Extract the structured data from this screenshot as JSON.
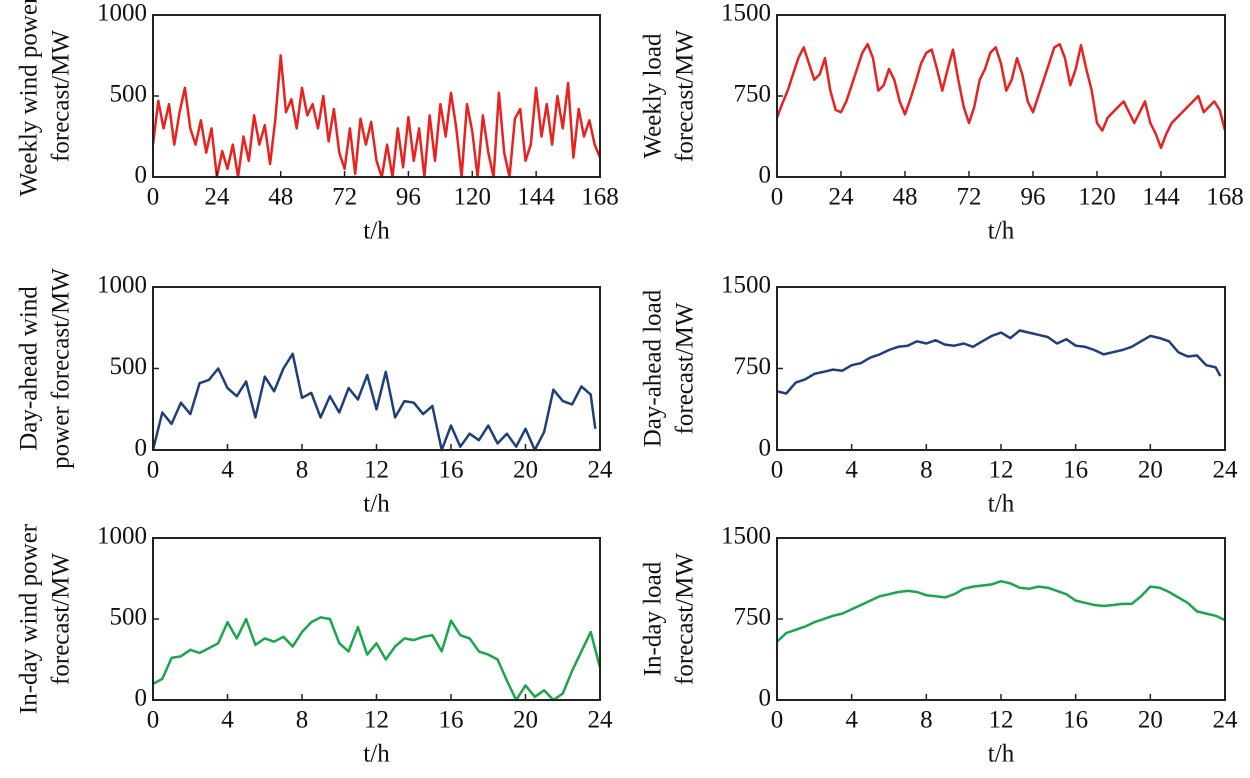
{
  "chart_data": [
    {
      "type": "line",
      "ylabel": [
        "Weekly wind power",
        "forecast/MW"
      ],
      "xlabel": "t/h",
      "xlim": [
        0,
        168
      ],
      "xticks": [
        0,
        24,
        48,
        72,
        96,
        120,
        144,
        168
      ],
      "ylim": [
        0,
        1000
      ],
      "yticks": [
        0,
        500,
        1000
      ],
      "series": [
        {
          "color": "#e8231f",
          "x": [
            0,
            2,
            4,
            6,
            8,
            10,
            12,
            14,
            16,
            18,
            20,
            22,
            24,
            26,
            28,
            30,
            32,
            34,
            36,
            38,
            40,
            42,
            44,
            46,
            48,
            50,
            52,
            54,
            56,
            58,
            60,
            62,
            64,
            66,
            68,
            70,
            72,
            74,
            76,
            78,
            80,
            82,
            84,
            86,
            88,
            90,
            92,
            94,
            96,
            98,
            100,
            102,
            104,
            106,
            108,
            110,
            112,
            114,
            116,
            118,
            120,
            122,
            124,
            126,
            128,
            130,
            132,
            134,
            136,
            138,
            140,
            142,
            144,
            146,
            148,
            150,
            152,
            154,
            156,
            158,
            160,
            162,
            164,
            166,
            168
          ],
          "values": [
            200,
            470,
            300,
            450,
            200,
            400,
            550,
            300,
            200,
            350,
            150,
            300,
            0,
            160,
            50,
            200,
            0,
            250,
            100,
            380,
            200,
            320,
            80,
            360,
            750,
            400,
            480,
            300,
            550,
            380,
            450,
            300,
            500,
            220,
            420,
            150,
            50,
            300,
            20,
            360,
            200,
            340,
            100,
            0,
            200,
            0,
            300,
            60,
            370,
            100,
            300,
            0,
            380,
            100,
            450,
            250,
            520,
            300,
            0,
            450,
            280,
            0,
            380,
            150,
            0,
            520,
            150,
            0,
            360,
            420,
            100,
            200,
            550,
            250,
            450,
            200,
            500,
            300,
            580,
            120,
            420,
            250,
            350,
            200,
            120
          ]
        }
      ]
    },
    {
      "type": "line",
      "ylabel": [
        "Weekly load",
        "forecast/MW"
      ],
      "xlabel": "t/h",
      "xlim": [
        0,
        168
      ],
      "xticks": [
        0,
        24,
        48,
        72,
        96,
        120,
        144,
        168
      ],
      "ylim": [
        0,
        1500
      ],
      "yticks": [
        0,
        750,
        1500
      ],
      "series": [
        {
          "color": "#e8231f",
          "x": [
            0,
            2,
            4,
            6,
            8,
            10,
            12,
            14,
            16,
            18,
            20,
            22,
            24,
            26,
            28,
            30,
            32,
            34,
            36,
            38,
            40,
            42,
            44,
            46,
            48,
            50,
            52,
            54,
            56,
            58,
            60,
            62,
            64,
            66,
            68,
            70,
            72,
            74,
            76,
            78,
            80,
            82,
            84,
            86,
            88,
            90,
            92,
            94,
            96,
            98,
            100,
            102,
            104,
            106,
            108,
            110,
            112,
            114,
            116,
            118,
            120,
            122,
            124,
            126,
            128,
            130,
            132,
            134,
            136,
            138,
            140,
            142,
            144,
            146,
            148,
            150,
            152,
            154,
            156,
            158,
            160,
            162,
            164,
            166,
            168
          ],
          "values": [
            550,
            680,
            800,
            950,
            1100,
            1200,
            1050,
            900,
            950,
            1100,
            800,
            620,
            600,
            700,
            850,
            1000,
            1150,
            1230,
            1100,
            800,
            850,
            1000,
            900,
            700,
            580,
            720,
            880,
            1050,
            1150,
            1180,
            1000,
            800,
            1000,
            1180,
            900,
            650,
            500,
            650,
            900,
            1000,
            1150,
            1200,
            1050,
            800,
            900,
            1100,
            950,
            700,
            600,
            750,
            900,
            1050,
            1200,
            1230,
            1100,
            850,
            1000,
            1220,
            1000,
            800,
            500,
            430,
            550,
            600,
            650,
            700,
            600,
            500,
            600,
            700,
            500,
            400,
            270,
            400,
            500,
            550,
            600,
            650,
            700,
            750,
            600,
            650,
            700,
            620,
            430
          ]
        }
      ]
    },
    {
      "type": "line",
      "ylabel": [
        "Day-ahead wind",
        "power forecast/MW"
      ],
      "xlabel": "t/h",
      "xlim": [
        0,
        24
      ],
      "xticks": [
        0,
        4,
        8,
        12,
        16,
        20,
        24
      ],
      "ylim": [
        0,
        1000
      ],
      "yticks": [
        0,
        500,
        1000
      ],
      "series": [
        {
          "color": "#1f3f7a",
          "x": [
            0,
            0.5,
            1,
            1.5,
            2,
            2.5,
            3,
            3.5,
            4,
            4.5,
            5,
            5.5,
            6,
            6.5,
            7,
            7.5,
            8,
            8.5,
            9,
            9.5,
            10,
            10.5,
            11,
            11.5,
            12,
            12.5,
            13,
            13.5,
            14,
            14.5,
            15,
            15.5,
            16,
            16.5,
            17,
            17.5,
            18,
            18.5,
            19,
            19.5,
            20,
            20.5,
            21,
            21.5,
            22,
            22.5,
            23,
            23.5,
            23.75
          ],
          "values": [
            0,
            230,
            160,
            290,
            220,
            410,
            430,
            500,
            380,
            330,
            420,
            200,
            450,
            360,
            500,
            590,
            320,
            350,
            200,
            330,
            230,
            380,
            310,
            460,
            250,
            480,
            200,
            300,
            290,
            220,
            270,
            0,
            150,
            20,
            100,
            60,
            150,
            40,
            100,
            20,
            130,
            0,
            110,
            370,
            300,
            280,
            390,
            340,
            130
          ]
        }
      ]
    },
    {
      "type": "line",
      "ylabel": [
        "Day-ahead load",
        "forecast/MW"
      ],
      "xlabel": "t/h",
      "xlim": [
        0,
        24
      ],
      "xticks": [
        0,
        4,
        8,
        12,
        16,
        20,
        24
      ],
      "ylim": [
        0,
        1500
      ],
      "yticks": [
        0,
        750,
        1500
      ],
      "series": [
        {
          "color": "#1f3f7a",
          "x": [
            0,
            0.5,
            1,
            1.5,
            2,
            2.5,
            3,
            3.5,
            4,
            4.5,
            5,
            5.5,
            6,
            6.5,
            7,
            7.5,
            8,
            8.5,
            9,
            9.5,
            10,
            10.5,
            11,
            11.5,
            12,
            12.5,
            13,
            13.5,
            14,
            14.5,
            15,
            15.5,
            16,
            16.5,
            17,
            17.5,
            18,
            18.5,
            19,
            19.5,
            20,
            20.5,
            21,
            21.5,
            22,
            22.5,
            23,
            23.5,
            23.75
          ],
          "values": [
            540,
            520,
            620,
            650,
            700,
            720,
            740,
            730,
            780,
            800,
            850,
            880,
            920,
            950,
            960,
            1000,
            980,
            1010,
            970,
            960,
            980,
            950,
            1000,
            1050,
            1080,
            1030,
            1100,
            1080,
            1060,
            1040,
            980,
            1020,
            960,
            950,
            920,
            880,
            900,
            920,
            950,
            1000,
            1050,
            1030,
            1000,
            900,
            860,
            870,
            780,
            760,
            680
          ]
        }
      ]
    },
    {
      "type": "line",
      "ylabel": [
        "In-day wind power",
        "forecast/MW"
      ],
      "xlabel": "t/h",
      "xlim": [
        0,
        24
      ],
      "xticks": [
        0,
        4,
        8,
        12,
        16,
        20,
        24
      ],
      "ylim": [
        0,
        1000
      ],
      "yticks": [
        0,
        500,
        1000
      ],
      "series": [
        {
          "color": "#1aa64a",
          "x": [
            0,
            0.5,
            1,
            1.5,
            2,
            2.5,
            3,
            3.5,
            4,
            4.5,
            5,
            5.5,
            6,
            6.5,
            7,
            7.5,
            8,
            8.5,
            9,
            9.5,
            10,
            10.5,
            11,
            11.5,
            12,
            12.5,
            13,
            13.5,
            14,
            14.5,
            15,
            15.5,
            16,
            16.5,
            17,
            17.5,
            18,
            18.5,
            19,
            19.5,
            20,
            20.5,
            21,
            21.5,
            22,
            22.5,
            23,
            23.5,
            24
          ],
          "values": [
            100,
            130,
            260,
            270,
            310,
            290,
            320,
            350,
            480,
            380,
            500,
            340,
            380,
            360,
            390,
            330,
            420,
            480,
            510,
            500,
            350,
            300,
            450,
            280,
            350,
            250,
            330,
            380,
            370,
            390,
            400,
            300,
            490,
            400,
            380,
            300,
            280,
            250,
            120,
            0,
            90,
            20,
            60,
            0,
            40,
            180,
            300,
            420,
            200
          ]
        }
      ]
    },
    {
      "type": "line",
      "ylabel": [
        "In-day load",
        "forecast/MW"
      ],
      "xlabel": "t/h",
      "xlim": [
        0,
        24
      ],
      "xticks": [
        0,
        4,
        8,
        12,
        16,
        20,
        24
      ],
      "ylim": [
        0,
        1500
      ],
      "yticks": [
        0,
        750,
        1500
      ],
      "series": [
        {
          "color": "#1aa64a",
          "x": [
            0,
            0.5,
            1,
            1.5,
            2,
            2.5,
            3,
            3.5,
            4,
            4.5,
            5,
            5.5,
            6,
            6.5,
            7,
            7.5,
            8,
            8.5,
            9,
            9.5,
            10,
            10.5,
            11,
            11.5,
            12,
            12.5,
            13,
            13.5,
            14,
            14.5,
            15,
            15.5,
            16,
            16.5,
            17,
            17.5,
            18,
            18.5,
            19,
            19.5,
            20,
            20.5,
            21,
            21.5,
            22,
            22.5,
            23,
            23.5,
            24
          ],
          "values": [
            540,
            620,
            650,
            680,
            720,
            750,
            780,
            800,
            840,
            880,
            920,
            960,
            980,
            1000,
            1010,
            1000,
            970,
            960,
            950,
            980,
            1030,
            1050,
            1060,
            1070,
            1100,
            1080,
            1040,
            1030,
            1050,
            1040,
            1010,
            980,
            920,
            900,
            880,
            870,
            880,
            890,
            890,
            960,
            1050,
            1040,
            1000,
            950,
            900,
            820,
            800,
            780,
            740
          ]
        }
      ]
    }
  ]
}
